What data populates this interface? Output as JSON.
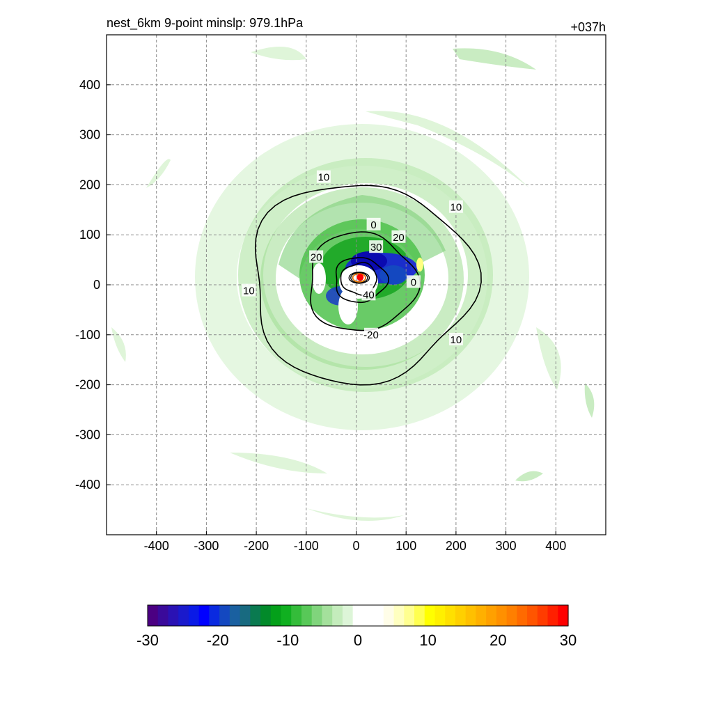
{
  "chart_data": {
    "type": "heatmap",
    "title_left": "nest_6km  9-point minslp: 979.1hPa",
    "title_right": "+037h",
    "xlabel": "",
    "ylabel": "",
    "xlim": [
      -500,
      500
    ],
    "ylim": [
      -500,
      500
    ],
    "xticks": [
      -400,
      -300,
      -200,
      -100,
      0,
      100,
      200,
      300,
      400
    ],
    "yticks": [
      400,
      300,
      200,
      100,
      0,
      -100,
      -200,
      -300,
      -400
    ],
    "grid": true,
    "colorbar": {
      "orientation": "horizontal",
      "range": [
        -30,
        30
      ],
      "ticks": [
        -30,
        -20,
        -10,
        0,
        10,
        20,
        30
      ],
      "colors": [
        "#4b0082",
        "#3a0a9a",
        "#2a12b4",
        "#1a1acc",
        "#0a1ae6",
        "#0000ff",
        "#0a2ae0",
        "#1448c0",
        "#1a60a0",
        "#186a80",
        "#0a7a50",
        "#028a2a",
        "#04a01a",
        "#10b020",
        "#34bc3a",
        "#58c858",
        "#80d47c",
        "#a4e09c",
        "#c4ecbc",
        "#ddf5d8",
        "#ffffff",
        "#ffffff",
        "#ffffff",
        "#fffde8",
        "#ffffc0",
        "#ffff90",
        "#ffff50",
        "#ffff00",
        "#fff000",
        "#ffe000",
        "#ffd000",
        "#ffc000",
        "#ffb000",
        "#ffa000",
        "#ff9000",
        "#ff7f00",
        "#ff6a00",
        "#ff5500",
        "#ff3c00",
        "#ff2000",
        "#ff0000"
      ]
    },
    "contours": [
      {
        "level": "10",
        "rx": 222,
        "ry": 178,
        "cx": 8,
        "cy": 5
      },
      {
        "level": "-20",
        "rx": 108,
        "ry": 88,
        "cx": 10,
        "cy": 5
      },
      {
        "level": "-30",
        "rx": 52,
        "ry": 40,
        "cx": 8,
        "cy": 10
      },
      {
        "level": "-40",
        "rx": 36,
        "ry": 28,
        "cx": 6,
        "cy": 12
      }
    ],
    "contour_labels": [
      {
        "text": "10",
        "x": -65,
        "y": 215
      },
      {
        "text": "10",
        "x": 200,
        "y": 155
      },
      {
        "text": "10",
        "x": -215,
        "y": -12
      },
      {
        "text": "10",
        "x": 200,
        "y": -110
      },
      {
        "text": "20",
        "x": 85,
        "y": 95
      },
      {
        "text": "20",
        "x": -80,
        "y": 55
      },
      {
        "text": "-20",
        "x": 30,
        "y": -100
      },
      {
        "text": "30",
        "x": 40,
        "y": 75
      },
      {
        "text": "40",
        "x": 25,
        "y": -20
      },
      {
        "text": "0",
        "x": 35,
        "y": 120
      },
      {
        "text": "0",
        "x": 115,
        "y": 5
      }
    ],
    "center_marker": {
      "x": 8,
      "y": 15,
      "color": "#ff0000"
    }
  }
}
